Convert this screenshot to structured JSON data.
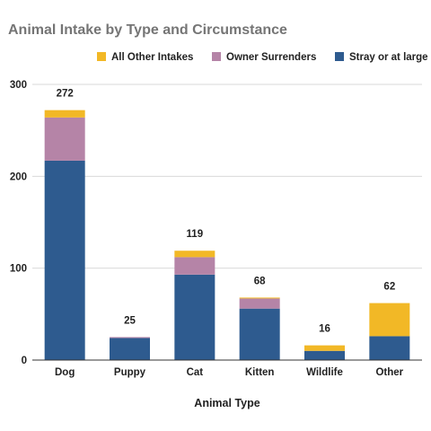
{
  "chart_data": {
    "type": "bar",
    "stacked": true,
    "title": "Animal Intake by Type and Circumstance",
    "xlabel": "Animal Type",
    "ylabel": "",
    "categories": [
      "Dog",
      "Puppy",
      "Cat",
      "Kitten",
      "Wildlife",
      "Other"
    ],
    "series": [
      {
        "name": "Stray or at large",
        "color": "#2e5b8f",
        "values": [
          217,
          24,
          93,
          56,
          10,
          26
        ]
      },
      {
        "name": "Owner Surrenders",
        "color": "#b584a7",
        "values": [
          47,
          1,
          19,
          11,
          0,
          0
        ]
      },
      {
        "name": "All Other Intakes",
        "color": "#f2b826",
        "values": [
          8,
          0,
          7,
          1,
          6,
          36
        ]
      }
    ],
    "totals": [
      "272",
      "25",
      "119",
      "68",
      "16",
      "62"
    ],
    "legend_order": [
      "All Other Intakes",
      "Owner Surrenders",
      "Stray or at large"
    ],
    "legend_position": "top",
    "ylim": [
      0,
      300
    ],
    "yticks": [
      "0",
      "100",
      "200",
      "300"
    ],
    "grid": true
  }
}
